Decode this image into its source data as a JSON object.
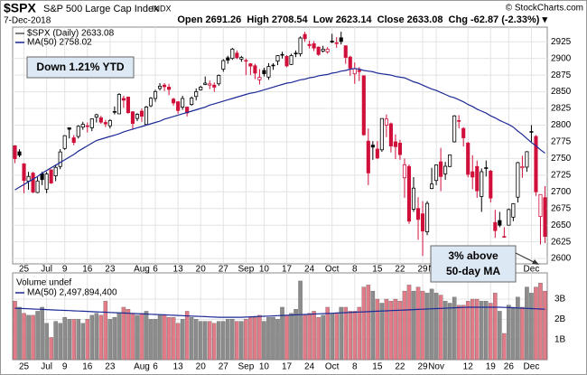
{
  "header": {
    "symbol": "$SPX",
    "name": "S&P 500 Large Cap Index",
    "exchange": "INDX",
    "date": "7-Dec-2018",
    "quote": "Open 2691.26  High 2708.54  Low 2623.14  Close 2633.08  Chg -62.87 (-2.33%) ▾",
    "copyright": "© StockCharts.com"
  },
  "chart_data": {
    "type": "candlestick",
    "xlim": [
      -0.5,
      117.5
    ],
    "xticks": [
      {
        "value": 2,
        "label": "25"
      },
      {
        "value": 7,
        "label": "Jul"
      },
      {
        "value": 11,
        "label": "9"
      },
      {
        "value": 16,
        "label": "16"
      },
      {
        "value": 21,
        "label": "23"
      },
      {
        "value": 28,
        "label": "Aug"
      },
      {
        "value": 31,
        "label": "6"
      },
      {
        "value": 36,
        "label": "13"
      },
      {
        "value": 41,
        "label": "20"
      },
      {
        "value": 46,
        "label": "27"
      },
      {
        "value": 51,
        "label": "Sep"
      },
      {
        "value": 55,
        "label": "10"
      },
      {
        "value": 60,
        "label": "17"
      },
      {
        "value": 65,
        "label": "24"
      },
      {
        "value": 70,
        "label": "Oct"
      },
      {
        "value": 75,
        "label": "8"
      },
      {
        "value": 80,
        "label": "15"
      },
      {
        "value": 85,
        "label": "22"
      },
      {
        "value": 90,
        "label": "29"
      },
      {
        "value": 93,
        "label": "Nov"
      },
      {
        "value": 100,
        "label": "12"
      },
      {
        "value": 105,
        "label": "19"
      },
      {
        "value": 109,
        "label": "26"
      },
      {
        "value": 114,
        "label": "Dec"
      }
    ],
    "ylim": [
      2592,
      2947
    ],
    "yticks": [
      2600,
      2625,
      2650,
      2675,
      2700,
      2725,
      2750,
      2775,
      2800,
      2825,
      2850,
      2875,
      2900,
      2925
    ],
    "grid": true,
    "up_color": "#000000",
    "down_color": "#d0103a",
    "series": [
      {
        "name": "$SPX (Daily) 2633.08",
        "open": [
          2769,
          2760,
          2742,
          2716,
          2728,
          2699,
          2727,
          2704,
          2733,
          2724,
          2738,
          2765,
          2796,
          2781,
          2783,
          2797,
          2799,
          2796,
          2812,
          2811,
          2804,
          2799,
          2820,
          2817,
          2840,
          2842,
          2820,
          2810,
          2821,
          2801,
          2829,
          2840,
          2855,
          2860,
          2857,
          2839,
          2835,
          2827,
          2827,
          2831,
          2843,
          2853,
          2861,
          2860,
          2860,
          2862,
          2884,
          2901,
          2900,
          2908,
          2899,
          2897,
          2892,
          2889,
          2868,
          2882,
          2872,
          2890,
          2896,
          2906,
          2903,
          2891,
          2907,
          2907,
          2936,
          2921,
          2922,
          2917,
          2911,
          2910,
          2926,
          2923,
          2931,
          2919,
          2902,
          2877,
          2882,
          2874,
          2776,
          2770,
          2764,
          2763,
          2800,
          2802,
          2775,
          2773,
          2721,
          2738,
          2674,
          2675,
          2667,
          2640,
          2705,
          2717,
          2745,
          2727,
          2738,
          2775,
          2806,
          2795,
          2773,
          2730,
          2738,
          2693,
          2735,
          2731,
          2654,
          2657,
          2633,
          2650,
          2662,
          2692,
          2736,
          2737,
          2790,
          2783,
          2663,
          2691.26
        ],
        "high": [
          2770,
          2764,
          2743,
          2730,
          2730,
          2722,
          2730,
          2730,
          2733,
          2741,
          2764,
          2785,
          2796,
          2785,
          2800,
          2805,
          2804,
          2810,
          2817,
          2814,
          2808,
          2809,
          2828,
          2848,
          2844,
          2843,
          2821,
          2818,
          2825,
          2829,
          2842,
          2853,
          2863,
          2863,
          2862,
          2841,
          2836,
          2844,
          2828,
          2843,
          2855,
          2859,
          2873,
          2867,
          2864,
          2876,
          2899,
          2904,
          2916,
          2912,
          2904,
          2900,
          2893,
          2892,
          2884,
          2886,
          2893,
          2893,
          2905,
          2910,
          2905,
          2907,
          2912,
          2933,
          2940,
          2927,
          2926,
          2918,
          2919,
          2917,
          2937,
          2932,
          2940,
          2919,
          2904,
          2894,
          2887,
          2874,
          2795,
          2776,
          2776,
          2810,
          2816,
          2804,
          2786,
          2778,
          2750,
          2741,
          2722,
          2692,
          2686,
          2686,
          2736,
          2741,
          2766,
          2745,
          2756,
          2815,
          2815,
          2797,
          2775,
          2755,
          2747,
          2735,
          2747,
          2733,
          2673,
          2670,
          2647,
          2675,
          2683,
          2745,
          2754,
          2761,
          2800,
          2785,
          2696,
          2708.54
        ],
        "low": [
          2743,
          2752,
          2698,
          2703,
          2698,
          2698,
          2710,
          2698,
          2712,
          2716,
          2734,
          2763,
          2780,
          2770,
          2780,
          2793,
          2789,
          2791,
          2804,
          2802,
          2797,
          2795,
          2816,
          2817,
          2826,
          2817,
          2793,
          2806,
          2805,
          2800,
          2827,
          2835,
          2852,
          2851,
          2845,
          2829,
          2817,
          2823,
          2813,
          2829,
          2837,
          2852,
          2860,
          2854,
          2850,
          2859,
          2880,
          2892,
          2898,
          2899,
          2895,
          2875,
          2875,
          2869,
          2861,
          2873,
          2868,
          2883,
          2890,
          2900,
          2887,
          2890,
          2902,
          2903,
          2925,
          2915,
          2911,
          2904,
          2909,
          2907,
          2923,
          2916,
          2921,
          2892,
          2874,
          2862,
          2866,
          2784,
          2710,
          2748,
          2749,
          2760,
          2782,
          2759,
          2749,
          2748,
          2691,
          2652,
          2670,
          2628,
          2604,
          2635,
          2704,
          2710,
          2701,
          2718,
          2737,
          2774,
          2795,
          2768,
          2722,
          2704,
          2691,
          2670,
          2723,
          2684,
          2631,
          2647,
          2631,
          2650,
          2656,
          2684,
          2721,
          2730,
          2775,
          2694,
          2621,
          2623.14
        ],
        "close": [
          2749.76,
          2754.88,
          2717.07,
          2723.06,
          2699.63,
          2716.31,
          2718.37,
          2726.71,
          2713.22,
          2736.61,
          2759.82,
          2784.17,
          2793.84,
          2774.02,
          2798.29,
          2801.31,
          2798.43,
          2809.55,
          2815.62,
          2804.49,
          2801.83,
          2806.98,
          2820.4,
          2846.07,
          2837.44,
          2818.82,
          2802.6,
          2816.29,
          2813.36,
          2827.22,
          2840.35,
          2850.4,
          2858.45,
          2857.7,
          2853.58,
          2833.28,
          2821.93,
          2839.96,
          2818.37,
          2840.69,
          2850.13,
          2857.05,
          2862.96,
          2861.82,
          2856.98,
          2874.69,
          2896.74,
          2897.52,
          2914.04,
          2901.13,
          2901.52,
          2896.72,
          2888.6,
          2878.05,
          2871.68,
          2877.13,
          2887.89,
          2888.92,
          2904.18,
          2904.98,
          2888.8,
          2904.31,
          2907.95,
          2930.75,
          2929.67,
          2919.37,
          2915.56,
          2905.97,
          2914,
          2913.98,
          2924.59,
          2923.43,
          2925.51,
          2901.61,
          2885.57,
          2884.43,
          2880.34,
          2785.68,
          2728.37,
          2767.13,
          2750.79,
          2809.92,
          2809.21,
          2768.78,
          2767.78,
          2755.88,
          2740.69,
          2656.1,
          2705.57,
          2658.69,
          2641.25,
          2682.63,
          2711.74,
          2740.37,
          2723.06,
          2738.31,
          2755.45,
          2813.89,
          2806.83,
          2781.01,
          2726.22,
          2722.18,
          2701.58,
          2730.2,
          2736.27,
          2690.73,
          2641.89,
          2649.93,
          2632.56,
          2673.45,
          2682.17,
          2743.79,
          2737.8,
          2760.17,
          2790.37,
          2700.06,
          2695.95,
          2633.08
        ]
      },
      {
        "name": "MA(50) 2758.02",
        "color": "#1c2a96",
        "values": [
          2703,
          2707,
          2711,
          2715,
          2719,
          2723,
          2728,
          2732,
          2736,
          2740,
          2744,
          2748,
          2752,
          2756,
          2761,
          2765,
          2769,
          2773,
          2777,
          2779,
          2781,
          2783,
          2785,
          2787,
          2790,
          2792,
          2794,
          2796,
          2798,
          2800,
          2802,
          2804,
          2806,
          2809,
          2811,
          2813,
          2815,
          2817,
          2819,
          2821,
          2823,
          2825,
          2827,
          2830,
          2832,
          2834,
          2836,
          2838,
          2840,
          2842,
          2844,
          2846,
          2848,
          2849,
          2851,
          2853,
          2855,
          2857,
          2859,
          2861,
          2863,
          2864,
          2866,
          2868,
          2869,
          2871,
          2872,
          2874,
          2875,
          2876,
          2878,
          2879,
          2881,
          2882,
          2884,
          2885,
          2884,
          2882,
          2881,
          2880,
          2878,
          2877,
          2876,
          2875,
          2873,
          2872,
          2871,
          2868,
          2865,
          2863,
          2860,
          2857,
          2854,
          2852,
          2849,
          2846,
          2843,
          2841,
          2838,
          2835,
          2831,
          2828,
          2824,
          2821,
          2818,
          2814,
          2811,
          2807,
          2804,
          2801,
          2797,
          2791,
          2786,
          2780,
          2774,
          2769,
          2763,
          2758.02
        ]
      }
    ],
    "volume": {
      "name": "Volume undef",
      "up_color": "#8c8c8c",
      "down_color": "#e07b87",
      "ylim": [
        0,
        4.3
      ],
      "yticks": [
        {
          "value": 1,
          "label": "1B"
        },
        {
          "value": 2,
          "label": "2B"
        },
        {
          "value": 3,
          "label": "3B"
        }
      ],
      "values": [
        2.9,
        2.6,
        2.3,
        2.2,
        2.2,
        2.4,
        2.6,
        1.8,
        1.1,
        1.9,
        1.8,
        2.1,
        2.0,
        2.0,
        2.0,
        1.8,
        2.0,
        2.2,
        2.3,
        2.2,
        2.9,
        2.0,
        2.1,
        2.3,
        2.6,
        2.5,
        2.3,
        2.2,
        2.3,
        2.4,
        2.0,
        2.0,
        2.2,
        2.2,
        2.1,
        2.1,
        1.8,
        2.0,
        2.4,
        2.1,
        2.0,
        1.9,
        1.9,
        1.9,
        1.8,
        1.9,
        1.9,
        2.0,
        2.0,
        1.9,
        1.9,
        2.0,
        2.1,
        2.1,
        2.2,
        1.9,
        2.1,
        2.1,
        2.0,
        2.6,
        2.2,
        2.3,
        2.5,
        3.9,
        2.2,
        2.3,
        2.4,
        2.1,
        2.2,
        2.6,
        2.3,
        2.3,
        2.6,
        2.6,
        2.4,
        2.4,
        2.6,
        3.6,
        3.7,
        3.4,
        3.0,
        2.8,
        3.0,
        2.9,
        3.0,
        2.9,
        3.4,
        3.7,
        3.4,
        3.6,
        3.4,
        3.3,
        3.5,
        3.3,
        3.2,
        2.9,
        2.8,
        3.1,
        2.7,
        2.7,
        2.9,
        3.0,
        3.0,
        2.9,
        2.9,
        2.8,
        3.3,
        2.4,
        1.3,
        2.7,
        2.6,
        3.1,
        2.6,
        3.6,
        3.3,
        3.6,
        3.8,
        3.4
      ],
      "ma": {
        "name": "MA(50) 2,497,894,400",
        "color": "#1c2a96",
        "values": [
          2.55,
          2.54,
          2.53,
          2.52,
          2.51,
          2.5,
          2.49,
          2.48,
          2.47,
          2.46,
          2.45,
          2.44,
          2.43,
          2.42,
          2.41,
          2.4,
          2.39,
          2.38,
          2.37,
          2.36,
          2.35,
          2.34,
          2.33,
          2.32,
          2.31,
          2.3,
          2.29,
          2.28,
          2.27,
          2.26,
          2.25,
          2.24,
          2.23,
          2.22,
          2.21,
          2.2,
          2.19,
          2.18,
          2.17,
          2.16,
          2.15,
          2.14,
          2.13,
          2.12,
          2.11,
          2.1,
          2.1,
          2.1,
          2.1,
          2.1,
          2.1,
          2.11,
          2.12,
          2.13,
          2.14,
          2.15,
          2.16,
          2.17,
          2.18,
          2.19,
          2.2,
          2.21,
          2.22,
          2.23,
          2.24,
          2.25,
          2.26,
          2.27,
          2.28,
          2.29,
          2.3,
          2.31,
          2.32,
          2.33,
          2.34,
          2.35,
          2.36,
          2.37,
          2.38,
          2.39,
          2.4,
          2.41,
          2.42,
          2.43,
          2.44,
          2.45,
          2.46,
          2.47,
          2.48,
          2.49,
          2.5,
          2.51,
          2.52,
          2.53,
          2.54,
          2.55,
          2.56,
          2.57,
          2.58,
          2.59,
          2.6,
          2.6,
          2.6,
          2.6,
          2.6,
          2.6,
          2.6,
          2.6,
          2.59,
          2.58,
          2.57,
          2.56,
          2.55,
          2.54,
          2.53,
          2.52,
          2.51,
          2.4978944
        ]
      }
    },
    "annotations": [
      "Down 1.21% YTD",
      "3% above",
      "50-day MA"
    ]
  }
}
